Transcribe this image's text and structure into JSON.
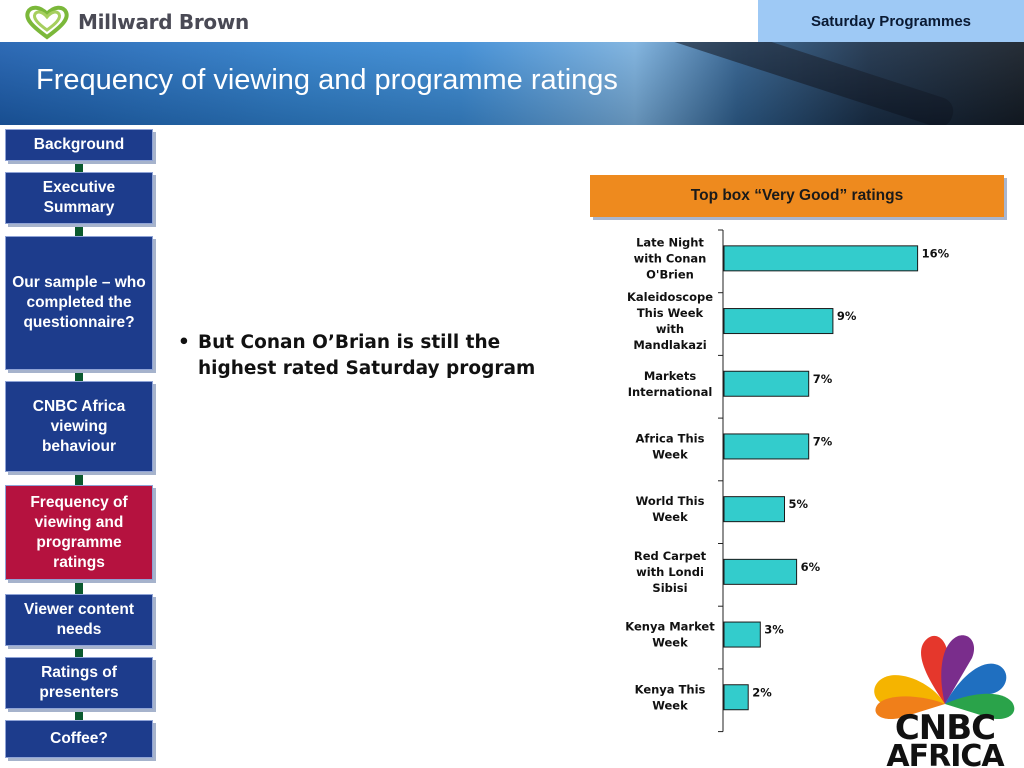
{
  "header": {
    "brand": "Millward Brown",
    "section_label": "Saturday Programmes",
    "title": "Frequency of viewing and programme ratings"
  },
  "nav": {
    "items": [
      {
        "label": "Background",
        "active": false
      },
      {
        "label": "Executive Summary",
        "active": false
      },
      {
        "label": "Our sample – who completed the questionnaire?",
        "active": false
      },
      {
        "label": "CNBC Africa viewing behaviour",
        "active": false
      },
      {
        "label": "Frequency of viewing and programme ratings",
        "active": true
      },
      {
        "label": "Viewer content needs",
        "active": false
      },
      {
        "label": "Ratings of presenters",
        "active": false
      },
      {
        "label": "Coffee?",
        "active": false
      }
    ]
  },
  "body": {
    "bullet": "But Conan O’Brian is still the highest rated Saturday program"
  },
  "chart_header": "Top box “Very Good” ratings",
  "chart_data": {
    "type": "bar",
    "orientation": "horizontal",
    "categories": [
      [
        "Late Night",
        "with Conan",
        "O'Brien"
      ],
      [
        "Kaleidoscope",
        "This Week",
        "with",
        "Mandlakazi"
      ],
      [
        "Markets",
        "International"
      ],
      [
        "Africa This",
        "Week"
      ],
      [
        "World This",
        "Week"
      ],
      [
        "Red Carpet",
        "with Londi",
        "Sibisi"
      ],
      [
        "Kenya Market",
        "Week"
      ],
      [
        "Kenya This",
        "Week"
      ]
    ],
    "values": [
      16,
      9,
      7,
      7,
      5,
      6,
      3,
      2
    ],
    "value_suffix": "%",
    "bar_color": "#33cccc",
    "xlim": [
      0,
      20
    ]
  },
  "logos": {
    "cnbc_line1": "CNBC",
    "cnbc_line2": "AFRICA"
  },
  "colors": {
    "nav_bg": "#1d3c8c",
    "nav_active_bg": "#b5123f",
    "chart_header_bg": "#ee8a1e",
    "section_tab_bg": "#9ec9f5"
  }
}
